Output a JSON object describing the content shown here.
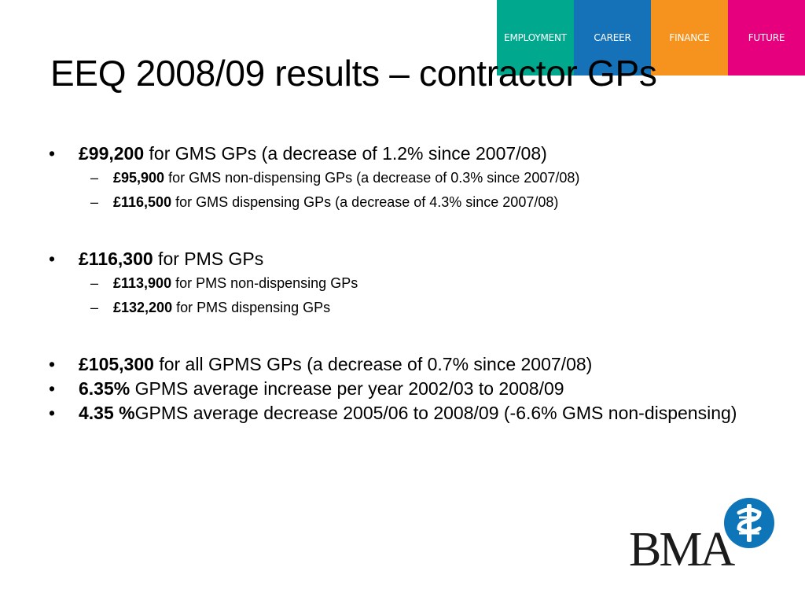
{
  "nav": {
    "tabs": [
      {
        "label": "EMPLOYMENT",
        "color": "#00a88e"
      },
      {
        "label": "CAREER",
        "color": "#1572b9"
      },
      {
        "label": "FINANCE",
        "color": "#f6921e"
      },
      {
        "label": "FUTURE",
        "color": "#e6007e"
      }
    ]
  },
  "slide": {
    "title": "EEQ 2008/09 results – contractor GPs",
    "bullet_marker": "•",
    "sub_marker": "–",
    "items": [
      {
        "bold": "£99,200",
        "text": " for GMS GPs (a decrease of 1.2% since 2007/08)",
        "subs": [
          {
            "bold": "£95,900",
            "text": " for GMS non-dispensing GPs (a decrease of 0.3% since 2007/08)"
          },
          {
            "bold": "£116,500",
            "text": " for GMS dispensing GPs (a decrease of 4.3% since 2007/08)"
          }
        ]
      },
      {
        "bold": "£116,300",
        "text": " for PMS GPs",
        "subs": [
          {
            "bold": "£113,900",
            "text": " for PMS non-dispensing GPs"
          },
          {
            "bold": "£132,200",
            "text": " for PMS dispensing GPs"
          }
        ]
      },
      {
        "bold": "£105,300",
        "text": " for all GPMS GPs (a decrease of 0.7% since 2007/08)"
      },
      {
        "bold": "6.35%",
        "text": " GPMS average increase per year 2002/03 to 2008/09"
      },
      {
        "bold": "4.35 %",
        "text": "GPMS average decrease 2005/06 to 2008/09 (-6.6% GMS non-dispensing)"
      }
    ]
  },
  "logo": {
    "text": "BMA",
    "icon": "bma-caduceus-icon",
    "color": "#0d75b8"
  }
}
